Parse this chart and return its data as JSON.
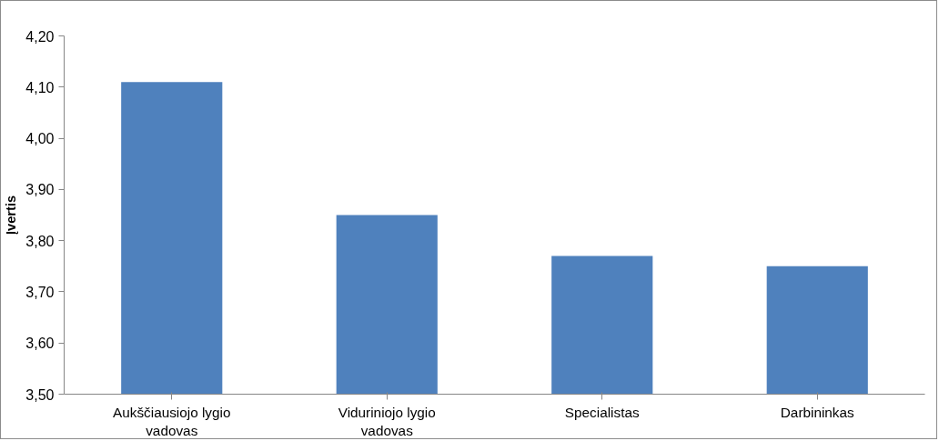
{
  "chart_data": {
    "type": "bar",
    "ylabel": "Įvertis",
    "categories": [
      "Aukščiausiojo lygio vadovas",
      "Viduriniojo lygio vadovas",
      "Specialistas",
      "Darbininkas"
    ],
    "values": [
      4.11,
      3.85,
      3.77,
      3.75
    ],
    "color": "#4f81bd",
    "ylim": [
      3.5,
      4.2
    ],
    "yticks": [
      {
        "value": 3.5,
        "label": "3,50"
      },
      {
        "value": 3.6,
        "label": "3,60"
      },
      {
        "value": 3.7,
        "label": "3,70"
      },
      {
        "value": 3.8,
        "label": "3,80"
      },
      {
        "value": 3.9,
        "label": "3,90"
      },
      {
        "value": 4.0,
        "label": "4,00"
      },
      {
        "value": 4.1,
        "label": "4,10"
      },
      {
        "value": 4.2,
        "label": "4,20"
      }
    ],
    "grid": false
  }
}
